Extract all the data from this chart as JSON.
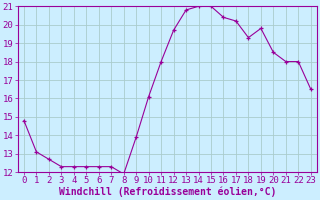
{
  "x": [
    0,
    1,
    2,
    3,
    4,
    5,
    6,
    7,
    8,
    9,
    10,
    11,
    12,
    13,
    14,
    15,
    16,
    17,
    18,
    19,
    20,
    21,
    22,
    23
  ],
  "y": [
    14.8,
    13.1,
    12.7,
    12.3,
    12.3,
    12.3,
    12.3,
    12.3,
    11.9,
    13.9,
    16.1,
    18.0,
    19.7,
    20.8,
    21.0,
    21.0,
    20.4,
    20.2,
    19.3,
    19.8,
    18.5,
    18.0,
    18.0,
    16.5
  ],
  "line_color": "#990099",
  "marker": "+",
  "bg_color": "#cceeff",
  "grid_color": "#aacccc",
  "xlabel": "Windchill (Refroidissement éolien,°C)",
  "xlabel_fontsize": 7,
  "tick_fontsize": 6.5,
  "ylim": [
    12,
    21
  ],
  "yticks": [
    12,
    13,
    14,
    15,
    16,
    17,
    18,
    19,
    20,
    21
  ],
  "xticks": [
    0,
    1,
    2,
    3,
    4,
    5,
    6,
    7,
    8,
    9,
    10,
    11,
    12,
    13,
    14,
    15,
    16,
    17,
    18,
    19,
    20,
    21,
    22,
    23
  ],
  "tick_color": "#990099",
  "spine_color": "#990099"
}
